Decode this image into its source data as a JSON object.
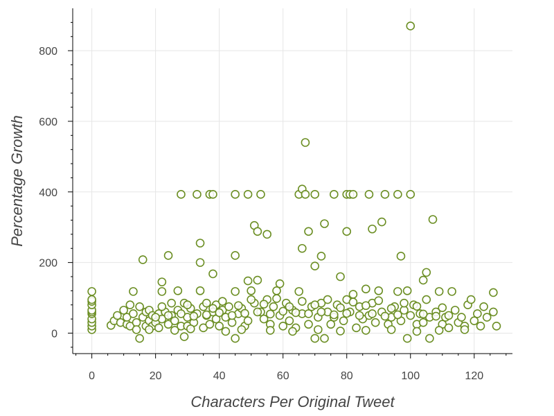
{
  "chart_data": {
    "type": "scatter",
    "title": "",
    "xlabel": "Characters Per Original Tweet",
    "ylabel": "Percentage Growth",
    "xlim": [
      -6,
      132
    ],
    "ylim": [
      -58,
      920
    ],
    "xticks": [
      0,
      20,
      40,
      60,
      80,
      100,
      120
    ],
    "xtick_labels": [
      "0",
      "20",
      "40",
      "60",
      "80",
      "100",
      "120"
    ],
    "yticks": [
      0,
      200,
      400,
      600,
      800
    ],
    "ytick_labels": [
      "0",
      "200",
      "400",
      "600",
      "800"
    ],
    "grid": true,
    "legend": "none",
    "marker_color": "#6b8e23",
    "series": [
      {
        "points": [
          [
            0,
            10
          ],
          [
            0,
            20
          ],
          [
            0,
            30
          ],
          [
            0,
            40
          ],
          [
            0,
            55
          ],
          [
            0,
            60
          ],
          [
            0,
            65
          ],
          [
            0,
            80
          ],
          [
            0,
            90
          ],
          [
            0,
            95
          ],
          [
            0,
            118
          ],
          [
            6,
            22
          ],
          [
            7,
            35
          ],
          [
            8,
            50
          ],
          [
            9,
            30
          ],
          [
            10,
            65
          ],
          [
            11,
            25
          ],
          [
            11,
            45
          ],
          [
            12,
            80
          ],
          [
            12,
            20
          ],
          [
            13,
            118
          ],
          [
            13,
            55
          ],
          [
            14,
            30
          ],
          [
            14,
            10
          ],
          [
            15,
            -15
          ],
          [
            15,
            75
          ],
          [
            16,
            208
          ],
          [
            16,
            45
          ],
          [
            17,
            20
          ],
          [
            17,
            60
          ],
          [
            18,
            65
          ],
          [
            18,
            35
          ],
          [
            19,
            50
          ],
          [
            19,
            20
          ],
          [
            20,
            30
          ],
          [
            21,
            55
          ],
          [
            21,
            15
          ],
          [
            22,
            118
          ],
          [
            22,
            145
          ],
          [
            22,
            40
          ],
          [
            23,
            60
          ],
          [
            24,
            220
          ],
          [
            24,
            25
          ],
          [
            25,
            85
          ],
          [
            25,
            50
          ],
          [
            26,
            35
          ],
          [
            27,
            120
          ],
          [
            27,
            65
          ],
          [
            28,
            393
          ],
          [
            28,
            20
          ],
          [
            29,
            -10
          ],
          [
            29,
            85
          ],
          [
            30,
            45
          ],
          [
            30,
            20
          ],
          [
            31,
            70
          ],
          [
            32,
            30
          ],
          [
            33,
            393
          ],
          [
            33,
            55
          ],
          [
            34,
            255
          ],
          [
            34,
            200
          ],
          [
            34,
            120
          ],
          [
            35,
            75
          ],
          [
            35,
            15
          ],
          [
            36,
            50
          ],
          [
            36,
            85
          ],
          [
            37,
            393
          ],
          [
            37,
            25
          ],
          [
            38,
            393
          ],
          [
            38,
            168
          ],
          [
            38,
            60
          ],
          [
            39,
            40
          ],
          [
            39,
            80
          ],
          [
            40,
            20
          ],
          [
            41,
            65
          ],
          [
            42,
            45
          ],
          [
            43,
            75
          ],
          [
            44,
            30
          ],
          [
            45,
            393
          ],
          [
            45,
            220
          ],
          [
            45,
            118
          ],
          [
            45,
            -15
          ],
          [
            46,
            55
          ],
          [
            47,
            70
          ],
          [
            48,
            20
          ],
          [
            49,
            393
          ],
          [
            49,
            148
          ],
          [
            49,
            35
          ],
          [
            50,
            120
          ],
          [
            51,
            305
          ],
          [
            51,
            85
          ],
          [
            52,
            288
          ],
          [
            52,
            150
          ],
          [
            53,
            393
          ],
          [
            53,
            60
          ],
          [
            54,
            40
          ],
          [
            55,
            280
          ],
          [
            55,
            95
          ],
          [
            56,
            25
          ],
          [
            57,
            75
          ],
          [
            58,
            120
          ],
          [
            59,
            140
          ],
          [
            59,
            50
          ],
          [
            60,
            20
          ],
          [
            61,
            85
          ],
          [
            62,
            35
          ],
          [
            63,
            65
          ],
          [
            64,
            15
          ],
          [
            65,
            393
          ],
          [
            65,
            118
          ],
          [
            66,
            408
          ],
          [
            66,
            240
          ],
          [
            66,
            55
          ],
          [
            67,
            393
          ],
          [
            67,
            540
          ],
          [
            68,
            288
          ],
          [
            68,
            25
          ],
          [
            69,
            75
          ],
          [
            70,
            393
          ],
          [
            70,
            190
          ],
          [
            70,
            -15
          ],
          [
            71,
            45
          ],
          [
            72,
            218
          ],
          [
            72,
            85
          ],
          [
            73,
            310
          ],
          [
            73,
            -15
          ],
          [
            74,
            60
          ],
          [
            75,
            25
          ],
          [
            76,
            393
          ],
          [
            76,
            45
          ],
          [
            77,
            80
          ],
          [
            78,
            160
          ],
          [
            79,
            35
          ],
          [
            80,
            393
          ],
          [
            80,
            288
          ],
          [
            80,
            95
          ],
          [
            81,
            393
          ],
          [
            81,
            60
          ],
          [
            82,
            393
          ],
          [
            82,
            110
          ],
          [
            83,
            15
          ],
          [
            84,
            75
          ],
          [
            85,
            40
          ],
          [
            86,
            125
          ],
          [
            87,
            393
          ],
          [
            87,
            50
          ],
          [
            88,
            295
          ],
          [
            88,
            85
          ],
          [
            89,
            30
          ],
          [
            90,
            120
          ],
          [
            91,
            315
          ],
          [
            91,
            60
          ],
          [
            92,
            393
          ],
          [
            93,
            25
          ],
          [
            94,
            45
          ],
          [
            95,
            75
          ],
          [
            96,
            393
          ],
          [
            96,
            118
          ],
          [
            97,
            218
          ],
          [
            97,
            35
          ],
          [
            98,
            65
          ],
          [
            99,
            -15
          ],
          [
            99,
            120
          ],
          [
            100,
            393
          ],
          [
            100,
            870
          ],
          [
            101,
            80
          ],
          [
            102,
            25
          ],
          [
            103,
            55
          ],
          [
            104,
            150
          ],
          [
            104,
            30
          ],
          [
            105,
            172
          ],
          [
            105,
            95
          ],
          [
            106,
            -15
          ],
          [
            106,
            45
          ],
          [
            107,
            322
          ],
          [
            108,
            60
          ],
          [
            109,
            118
          ],
          [
            110,
            25
          ],
          [
            111,
            45
          ],
          [
            112,
            15
          ],
          [
            113,
            118
          ],
          [
            114,
            65
          ],
          [
            115,
            30
          ],
          [
            116,
            45
          ],
          [
            117,
            20
          ],
          [
            118,
            80
          ],
          [
            119,
            95
          ],
          [
            120,
            35
          ],
          [
            121,
            55
          ],
          [
            122,
            20
          ],
          [
            123,
            75
          ],
          [
            124,
            45
          ],
          [
            126,
            115
          ],
          [
            126,
            60
          ],
          [
            127,
            20
          ],
          [
            18,
            10
          ],
          [
            26,
            8
          ],
          [
            31,
            12
          ],
          [
            42,
            5
          ],
          [
            47,
            10
          ],
          [
            56,
            8
          ],
          [
            63,
            5
          ],
          [
            71,
            10
          ],
          [
            78,
            6
          ],
          [
            86,
            8
          ],
          [
            94,
            10
          ],
          [
            102,
            5
          ],
          [
            109,
            8
          ],
          [
            117,
            10
          ],
          [
            20,
            45
          ],
          [
            24,
            50
          ],
          [
            28,
            55
          ],
          [
            32,
            48
          ],
          [
            36,
            52
          ],
          [
            40,
            58
          ],
          [
            44,
            50
          ],
          [
            48,
            56
          ],
          [
            52,
            60
          ],
          [
            56,
            54
          ],
          [
            60,
            62
          ],
          [
            64,
            58
          ],
          [
            68,
            55
          ],
          [
            72,
            60
          ],
          [
            76,
            52
          ],
          [
            80,
            56
          ],
          [
            84,
            50
          ],
          [
            88,
            55
          ],
          [
            92,
            48
          ],
          [
            96,
            52
          ],
          [
            100,
            50
          ],
          [
            104,
            54
          ],
          [
            108,
            48
          ],
          [
            112,
            50
          ],
          [
            22,
            75
          ],
          [
            30,
            80
          ],
          [
            38,
            70
          ],
          [
            46,
            78
          ],
          [
            54,
            82
          ],
          [
            62,
            75
          ],
          [
            70,
            80
          ],
          [
            78,
            72
          ],
          [
            86,
            78
          ],
          [
            94,
            70
          ],
          [
            102,
            76
          ],
          [
            110,
            72
          ],
          [
            41,
            90
          ],
          [
            50,
            95
          ],
          [
            58,
            98
          ],
          [
            66,
            90
          ],
          [
            74,
            95
          ],
          [
            82,
            88
          ],
          [
            90,
            92
          ],
          [
            98,
            85
          ]
        ]
      }
    ]
  }
}
